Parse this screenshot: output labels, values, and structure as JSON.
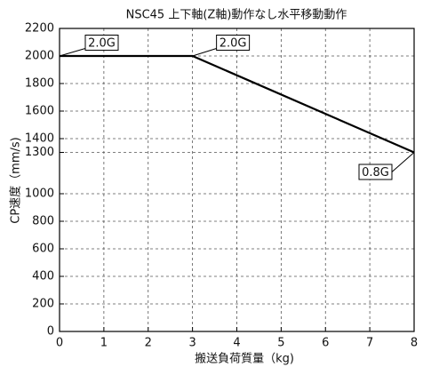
{
  "chart_data": {
    "type": "line",
    "title": "NSC45 上下軸(Z軸)動作なし水平移動動作",
    "x_label": "搬送負荷質量（kg)",
    "y_label": "CP速度（mm/s)",
    "x": [
      0,
      3,
      8
    ],
    "series": [
      {
        "name": "CP速度",
        "color": "#000000",
        "values": [
          2000,
          2000,
          1300
        ]
      }
    ],
    "xlim": [
      0,
      8
    ],
    "xticks": [
      0,
      1,
      2,
      3,
      4,
      5,
      6,
      7,
      8
    ],
    "ylim": [
      0,
      2200
    ],
    "yticks": [
      0,
      200,
      400,
      600,
      800,
      1000,
      1300,
      1400,
      1600,
      1800,
      2000,
      2200
    ],
    "grid": true,
    "annotations": [
      {
        "text": "2.0G",
        "x": 0,
        "y": 2000
      },
      {
        "text": "2.0G",
        "x": 3,
        "y": 2000
      },
      {
        "text": "0.8G",
        "x": 8,
        "y": 1300
      }
    ]
  }
}
